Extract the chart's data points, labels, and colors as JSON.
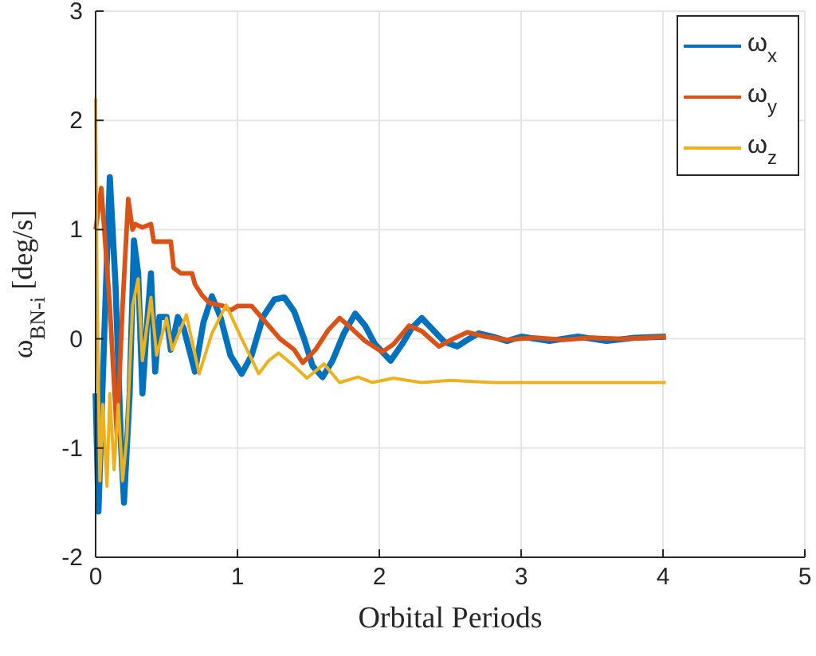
{
  "chart_data": {
    "type": "line",
    "xlabel": "Orbital Periods",
    "ylabel": "ω$_{BN-i}$ [deg/s]",
    "xlim": [
      0,
      5
    ],
    "ylim": [
      -2,
      3
    ],
    "xticks": [
      0,
      1,
      2,
      3,
      4,
      5
    ],
    "yticks": [
      -2,
      -1,
      0,
      1,
      2,
      3
    ],
    "grid": true,
    "legend": "top right",
    "line_style": "solid",
    "marker": "none",
    "series": [
      {
        "name": "ω$_{x}$",
        "color": "#0072bd",
        "x": [
          0,
          0.02,
          0.06,
          0.1,
          0.14,
          0.18,
          0.2,
          0.24,
          0.27,
          0.3,
          0.33,
          0.36,
          0.39,
          0.42,
          0.45,
          0.5,
          0.53,
          0.58,
          0.62,
          0.7,
          0.76,
          0.82,
          0.88,
          0.95,
          1.03,
          1.1,
          1.18,
          1.26,
          1.33,
          1.4,
          1.47,
          1.53,
          1.6,
          1.67,
          1.75,
          1.83,
          1.9,
          1.97,
          2.08,
          2.16,
          2.23,
          2.3,
          2.38,
          2.46,
          2.55,
          2.62,
          2.7,
          2.8,
          2.9,
          3.0,
          3.2,
          3.4,
          3.6,
          3.8,
          4.02
        ],
        "values": [
          -0.5,
          -1.58,
          0,
          1.48,
          0.5,
          -1.0,
          -1.5,
          -0.5,
          0.9,
          0.6,
          -0.5,
          0.1,
          0.6,
          -0.3,
          0.2,
          0.2,
          -0.1,
          0.2,
          0.1,
          -0.3,
          0.15,
          0.39,
          0.2,
          -0.15,
          -0.32,
          -0.15,
          0.2,
          0.36,
          0.38,
          0.25,
          0,
          -0.25,
          -0.35,
          -0.2,
          0.05,
          0.23,
          0.12,
          -0.05,
          -0.2,
          -0.05,
          0.1,
          0.19,
          0.08,
          -0.03,
          -0.07,
          -0.01,
          0.05,
          0.02,
          -0.02,
          0.02,
          -0.02,
          0.02,
          -0.02,
          0.01,
          0.02
        ]
      },
      {
        "name": "ω$_{y}$",
        "color": "#d95319",
        "x": [
          0,
          0.04,
          0.1,
          0.15,
          0.19,
          0.23,
          0.26,
          0.28,
          0.33,
          0.39,
          0.41,
          0.53,
          0.55,
          0.6,
          0.68,
          0.7,
          0.75,
          0.8,
          0.9,
          0.95,
          1.0,
          1.1,
          1.2,
          1.3,
          1.4,
          1.46,
          1.55,
          1.64,
          1.72,
          1.8,
          1.9,
          2.02,
          2.1,
          2.21,
          2.3,
          2.42,
          2.52,
          2.62,
          2.75,
          2.9,
          3.1,
          3.3,
          3.5,
          3.7,
          3.9,
          4.02
        ],
        "values": [
          1.0,
          1.38,
          0.3,
          -0.88,
          0.3,
          1.28,
          1.0,
          1.05,
          1.02,
          1.05,
          0.89,
          0.89,
          0.65,
          0.6,
          0.6,
          0.5,
          0.4,
          0.33,
          0.3,
          0.26,
          0.3,
          0.3,
          0.15,
          0,
          -0.1,
          -0.22,
          -0.1,
          0.08,
          0.19,
          0.1,
          -0.02,
          -0.12,
          -0.05,
          0.12,
          0.07,
          -0.07,
          0,
          0.06,
          0.02,
          -0.01,
          0.01,
          -0.01,
          0.01,
          0,
          0.01,
          0.02
        ]
      },
      {
        "name": "ω$_{z}$",
        "color": "#edb120",
        "x": [
          0,
          0.01,
          0.03,
          0.05,
          0.08,
          0.1,
          0.13,
          0.16,
          0.19,
          0.22,
          0.26,
          0.3,
          0.33,
          0.36,
          0.39,
          0.43,
          0.5,
          0.54,
          0.64,
          0.73,
          0.82,
          0.92,
          1.03,
          1.15,
          1.22,
          1.29,
          1.4,
          1.49,
          1.61,
          1.72,
          1.85,
          1.95,
          2.1,
          2.3,
          2.5,
          2.8,
          3.2,
          3.6,
          4.02
        ],
        "values": [
          2.2,
          0.5,
          -1.3,
          -0.6,
          -1.35,
          -0.5,
          -1.2,
          -0.6,
          -1.3,
          -0.9,
          0.3,
          0.55,
          -0.2,
          0.1,
          0.38,
          -0.15,
          0.19,
          -0.1,
          0.22,
          -0.32,
          0.05,
          0.31,
          0,
          -0.32,
          -0.2,
          -0.13,
          -0.25,
          -0.36,
          -0.23,
          -0.4,
          -0.35,
          -0.4,
          -0.36,
          -0.4,
          -0.38,
          -0.4,
          -0.4,
          -0.4,
          -0.4
        ]
      }
    ]
  }
}
